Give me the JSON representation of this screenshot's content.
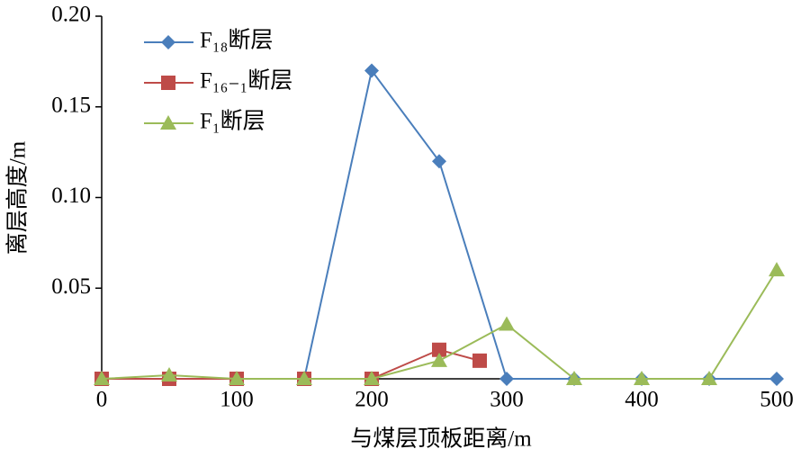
{
  "chart_data": {
    "type": "line",
    "xlabel": "与煤层顶板距离/m",
    "ylabel": "离层高度/m",
    "xlim": [
      0,
      500
    ],
    "xticks": [
      0,
      100,
      200,
      300,
      400,
      500
    ],
    "ylim": [
      0,
      0.2
    ],
    "yticks": [
      {
        "value": 0.05,
        "label": "0.05"
      },
      {
        "value": 0.1,
        "label": "0.10"
      },
      {
        "value": 0.15,
        "label": "0.15"
      },
      {
        "value": 0.2,
        "label": "0.20"
      }
    ],
    "grid": false,
    "legend": "upper left",
    "series": [
      {
        "name": "F₁₈断层",
        "color": "#4a7ebb",
        "marker": "diamond",
        "x": [
          0,
          50,
          100,
          150,
          200,
          250,
          300,
          350,
          400,
          450,
          500
        ],
        "values": [
          0,
          0,
          0,
          0,
          0.17,
          0.12,
          0,
          0,
          0,
          0,
          0
        ]
      },
      {
        "name": "F₁₆₋₁断层",
        "color": "#be4b48",
        "marker": "square",
        "x": [
          0,
          50,
          100,
          150,
          200,
          250,
          280
        ],
        "values": [
          0,
          0,
          0,
          0,
          0,
          0.016,
          0.01
        ]
      },
      {
        "name": "F₁断层",
        "color": "#9bbb59",
        "marker": "triangle",
        "x": [
          0,
          50,
          100,
          150,
          200,
          250,
          300,
          350,
          400,
          450,
          500
        ],
        "values": [
          0,
          0.002,
          0,
          0,
          0,
          0.01,
          0.03,
          0,
          0,
          0,
          0.06
        ]
      }
    ]
  }
}
